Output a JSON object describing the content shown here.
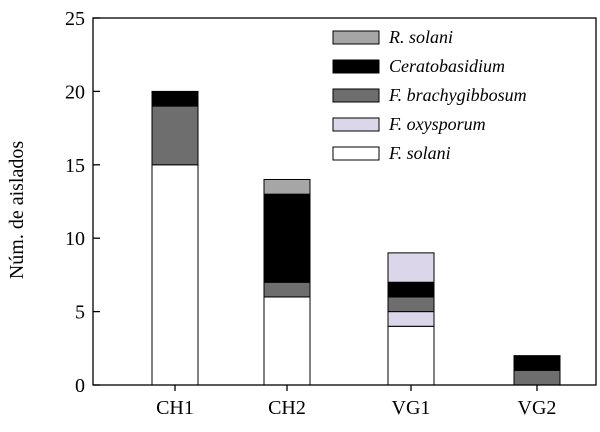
{
  "chart_data": {
    "type": "bar",
    "stacked": true,
    "title": "",
    "xlabel": "",
    "ylabel": "Núm. de aislados",
    "ylim": [
      0,
      25
    ],
    "yticks": [
      "0",
      "5",
      "10",
      "15",
      "20",
      "25"
    ],
    "grid": false,
    "legend_position": "top-right",
    "categories": [
      "CH1",
      "CH2",
      "VG1",
      "VG2"
    ],
    "series": [
      {
        "name": "F. solani",
        "color": "#ffffff",
        "values": [
          15,
          6,
          4,
          0
        ]
      },
      {
        "name": "F. oxysporum",
        "color": "#dcd6ea",
        "values": [
          0,
          0,
          1,
          0
        ]
      },
      {
        "name": "F. brachygibbosum",
        "color": "#6e6e6e",
        "values": [
          4,
          1,
          1,
          1
        ]
      },
      {
        "name": "Ceratobasidium",
        "color": "#000000",
        "values": [
          1,
          6,
          1,
          1
        ]
      },
      {
        "name": "R. solani",
        "color": "#a6a6a6",
        "values": [
          0,
          1,
          0,
          0
        ]
      }
    ],
    "extra_segments": [
      {
        "category": "VG1",
        "name": "F. oxysporum",
        "color": "#dcd6ea",
        "from": 7,
        "to": 9
      }
    ],
    "legend_order": [
      "R. solani",
      "Ceratobasidium",
      "F. brachygibbosum",
      "F. oxysporum",
      "F. solani"
    ]
  }
}
